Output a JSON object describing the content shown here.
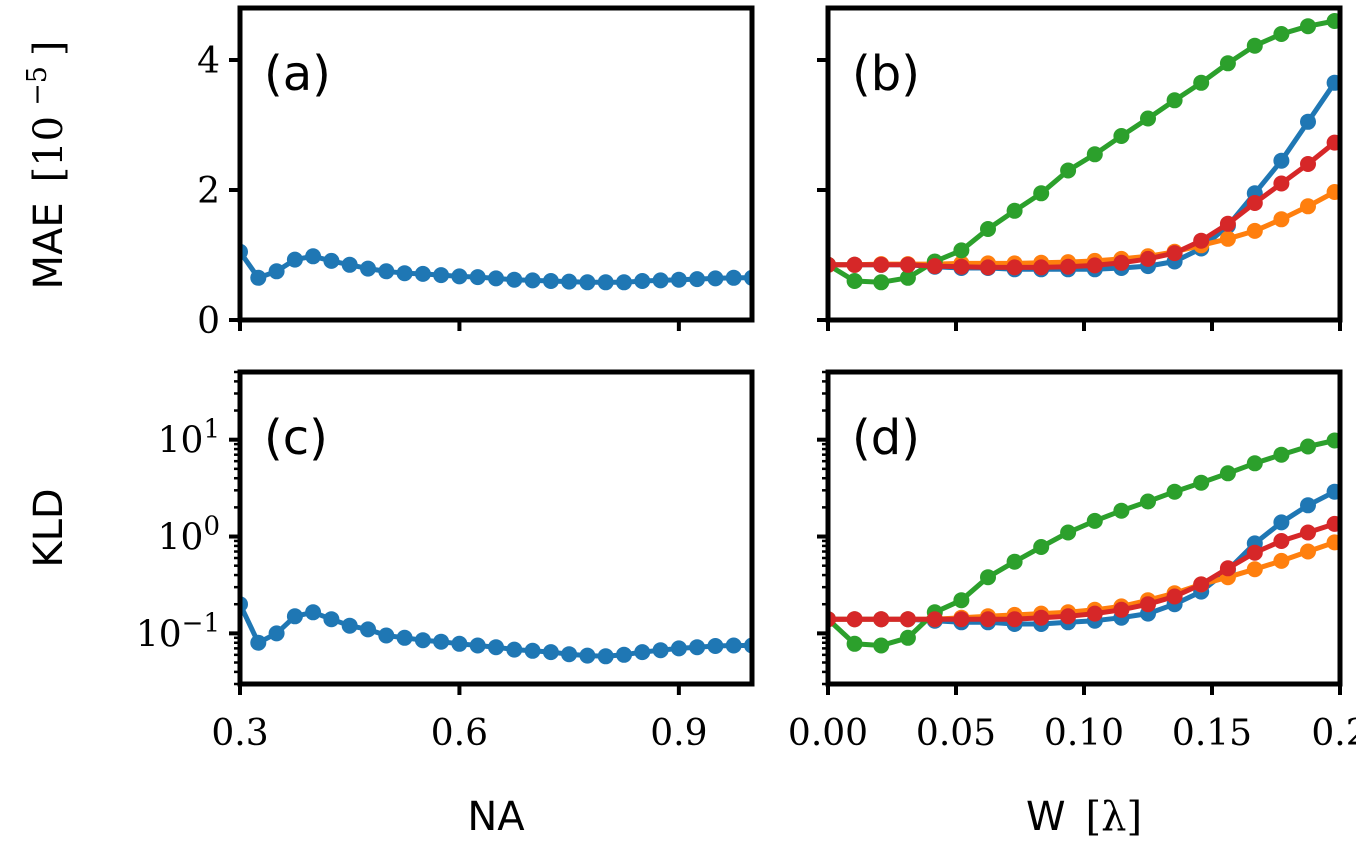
{
  "colors": {
    "blue": "#1f77b4",
    "orange": "#ff7f0e",
    "green": "#2ca02c",
    "red": "#d62728",
    "axes": "#000000",
    "background": "#ffffff"
  },
  "labels": {
    "top_ylabel_text": "MAE",
    "top_ylabel_unit": "[10",
    "top_ylabel_exp": "−5",
    "top_ylabel_close": "]",
    "bottom_ylabel": "KLD",
    "left_xlabel": "NA",
    "right_xlabel_text": "W",
    "right_xlabel_unit": "[λ]"
  },
  "chart_data": [
    {
      "panel_label": "(a)",
      "type": "line",
      "markers": true,
      "xlim": [
        0.3,
        1.0
      ],
      "ylim": [
        0,
        4.8
      ],
      "yscale": "linear",
      "xticks": [],
      "xticklabels": [],
      "yticks": [
        0,
        2,
        4
      ],
      "yticklabels": [
        "0",
        "2",
        "4"
      ],
      "series": [
        {
          "color_key": "blue",
          "x": [
            0.3,
            0.325,
            0.35,
            0.375,
            0.4,
            0.425,
            0.45,
            0.475,
            0.5,
            0.525,
            0.55,
            0.575,
            0.6,
            0.625,
            0.65,
            0.675,
            0.7,
            0.725,
            0.75,
            0.775,
            0.8,
            0.825,
            0.85,
            0.875,
            0.9,
            0.925,
            0.95,
            0.975,
            1.0
          ],
          "y": [
            1.05,
            0.65,
            0.75,
            0.93,
            0.98,
            0.91,
            0.85,
            0.79,
            0.75,
            0.72,
            0.71,
            0.69,
            0.67,
            0.66,
            0.64,
            0.62,
            0.61,
            0.6,
            0.59,
            0.58,
            0.58,
            0.58,
            0.6,
            0.61,
            0.62,
            0.63,
            0.64,
            0.65,
            0.65
          ]
        }
      ]
    },
    {
      "panel_label": "(b)",
      "type": "line",
      "markers": true,
      "xlim": [
        0.0,
        0.2
      ],
      "ylim": [
        0,
        4.8
      ],
      "yscale": "linear",
      "xticks": [],
      "xticklabels": [],
      "yticks": [
        0,
        2,
        4
      ],
      "yticklabels": [],
      "series": [
        {
          "color_key": "blue",
          "x": [
            0.0,
            0.0104,
            0.0208,
            0.0312,
            0.0417,
            0.0521,
            0.0625,
            0.0729,
            0.0833,
            0.0938,
            0.1042,
            0.1146,
            0.125,
            0.1354,
            0.1458,
            0.1562,
            0.1667,
            0.1771,
            0.1875,
            0.1979
          ],
          "y": [
            0.85,
            0.85,
            0.85,
            0.85,
            0.82,
            0.8,
            0.8,
            0.78,
            0.78,
            0.78,
            0.78,
            0.8,
            0.83,
            0.9,
            1.1,
            1.45,
            1.95,
            2.45,
            3.05,
            3.65
          ]
        },
        {
          "color_key": "orange",
          "x": [
            0.0,
            0.0104,
            0.0208,
            0.0312,
            0.0417,
            0.0521,
            0.0625,
            0.0729,
            0.0833,
            0.0938,
            0.1042,
            0.1146,
            0.125,
            0.1354,
            0.1458,
            0.1562,
            0.1667,
            0.1771,
            0.1875,
            0.1979
          ],
          "y": [
            0.85,
            0.85,
            0.86,
            0.86,
            0.86,
            0.87,
            0.87,
            0.87,
            0.88,
            0.89,
            0.91,
            0.94,
            0.98,
            1.05,
            1.15,
            1.25,
            1.37,
            1.55,
            1.75,
            1.97
          ]
        },
        {
          "color_key": "green",
          "x": [
            0.0,
            0.0104,
            0.0208,
            0.0312,
            0.0417,
            0.0521,
            0.0625,
            0.0729,
            0.0833,
            0.0938,
            0.1042,
            0.1146,
            0.125,
            0.1354,
            0.1458,
            0.1562,
            0.1667,
            0.1771,
            0.1875,
            0.1979
          ],
          "y": [
            0.85,
            0.6,
            0.58,
            0.65,
            0.9,
            1.07,
            1.4,
            1.68,
            1.95,
            2.3,
            2.55,
            2.83,
            3.1,
            3.38,
            3.65,
            3.95,
            4.22,
            4.4,
            4.52,
            4.6
          ]
        },
        {
          "color_key": "red",
          "x": [
            0.0,
            0.0104,
            0.0208,
            0.0312,
            0.0417,
            0.0521,
            0.0625,
            0.0729,
            0.0833,
            0.0938,
            0.1042,
            0.1146,
            0.125,
            0.1354,
            0.1458,
            0.1562,
            0.1667,
            0.1771,
            0.1875,
            0.1979
          ],
          "y": [
            0.85,
            0.85,
            0.85,
            0.85,
            0.83,
            0.82,
            0.81,
            0.81,
            0.81,
            0.82,
            0.84,
            0.88,
            0.94,
            1.03,
            1.22,
            1.48,
            1.8,
            2.1,
            2.4,
            2.73
          ]
        }
      ]
    },
    {
      "panel_label": "(c)",
      "type": "line",
      "markers": true,
      "xlim": [
        0.3,
        1.0
      ],
      "ylim": [
        0.03,
        50
      ],
      "yscale": "log",
      "xticks": [
        0.3,
        0.6,
        0.9
      ],
      "xticklabels": [
        "0.3",
        "0.6",
        "0.9"
      ],
      "yticks": [
        0.1,
        1,
        10
      ],
      "yticklabels": [
        {
          "base": "10",
          "exp": "−1"
        },
        {
          "base": "10",
          "exp": "0"
        },
        {
          "base": "10",
          "exp": "1"
        }
      ],
      "series": [
        {
          "color_key": "blue",
          "x": [
            0.3,
            0.325,
            0.35,
            0.375,
            0.4,
            0.425,
            0.45,
            0.475,
            0.5,
            0.525,
            0.55,
            0.575,
            0.6,
            0.625,
            0.65,
            0.675,
            0.7,
            0.725,
            0.75,
            0.775,
            0.8,
            0.825,
            0.85,
            0.875,
            0.9,
            0.925,
            0.95,
            0.975,
            1.0
          ],
          "y": [
            0.2,
            0.08,
            0.1,
            0.15,
            0.165,
            0.14,
            0.12,
            0.11,
            0.095,
            0.09,
            0.085,
            0.082,
            0.078,
            0.075,
            0.072,
            0.068,
            0.066,
            0.064,
            0.061,
            0.059,
            0.058,
            0.06,
            0.064,
            0.067,
            0.07,
            0.072,
            0.074,
            0.075,
            0.075
          ]
        }
      ]
    },
    {
      "panel_label": "(d)",
      "type": "line",
      "markers": true,
      "xlim": [
        0.0,
        0.2
      ],
      "ylim": [
        0.03,
        50
      ],
      "yscale": "log",
      "xticks": [
        0.0,
        0.05,
        0.1,
        0.15,
        0.2
      ],
      "xticklabels": [
        "0.00",
        "0.05",
        "0.10",
        "0.15",
        "0.2"
      ],
      "yticks": [
        0.1,
        1,
        10
      ],
      "yticklabels": [],
      "series": [
        {
          "color_key": "blue",
          "x": [
            0.0,
            0.0104,
            0.0208,
            0.0312,
            0.0417,
            0.0521,
            0.0625,
            0.0729,
            0.0833,
            0.0938,
            0.1042,
            0.1146,
            0.125,
            0.1354,
            0.1458,
            0.1562,
            0.1667,
            0.1771,
            0.1875,
            0.1979
          ],
          "y": [
            0.14,
            0.14,
            0.14,
            0.14,
            0.135,
            0.13,
            0.13,
            0.125,
            0.125,
            0.13,
            0.135,
            0.145,
            0.16,
            0.2,
            0.27,
            0.45,
            0.85,
            1.4,
            2.1,
            2.9
          ]
        },
        {
          "color_key": "orange",
          "x": [
            0.0,
            0.0104,
            0.0208,
            0.0312,
            0.0417,
            0.0521,
            0.0625,
            0.0729,
            0.0833,
            0.0938,
            0.1042,
            0.1146,
            0.125,
            0.1354,
            0.1458,
            0.1562,
            0.1667,
            0.1771,
            0.1875,
            0.1979
          ],
          "y": [
            0.14,
            0.14,
            0.14,
            0.14,
            0.14,
            0.145,
            0.15,
            0.155,
            0.16,
            0.165,
            0.175,
            0.19,
            0.22,
            0.26,
            0.32,
            0.38,
            0.46,
            0.56,
            0.7,
            0.87
          ]
        },
        {
          "color_key": "green",
          "x": [
            0.0,
            0.0104,
            0.0208,
            0.0312,
            0.0417,
            0.0521,
            0.0625,
            0.0729,
            0.0833,
            0.0938,
            0.1042,
            0.1146,
            0.125,
            0.1354,
            0.1458,
            0.1562,
            0.1667,
            0.1771,
            0.1875,
            0.1979
          ],
          "y": [
            0.14,
            0.078,
            0.075,
            0.09,
            0.165,
            0.22,
            0.38,
            0.55,
            0.78,
            1.1,
            1.45,
            1.85,
            2.3,
            2.9,
            3.6,
            4.5,
            5.7,
            7.0,
            8.5,
            9.8
          ]
        },
        {
          "color_key": "red",
          "x": [
            0.0,
            0.0104,
            0.0208,
            0.0312,
            0.0417,
            0.0521,
            0.0625,
            0.0729,
            0.0833,
            0.0938,
            0.1042,
            0.1146,
            0.125,
            0.1354,
            0.1458,
            0.1562,
            0.1667,
            0.1771,
            0.1875,
            0.1979
          ],
          "y": [
            0.14,
            0.14,
            0.14,
            0.14,
            0.14,
            0.14,
            0.14,
            0.14,
            0.145,
            0.15,
            0.16,
            0.175,
            0.2,
            0.24,
            0.32,
            0.47,
            0.68,
            0.9,
            1.1,
            1.35
          ]
        }
      ]
    }
  ]
}
